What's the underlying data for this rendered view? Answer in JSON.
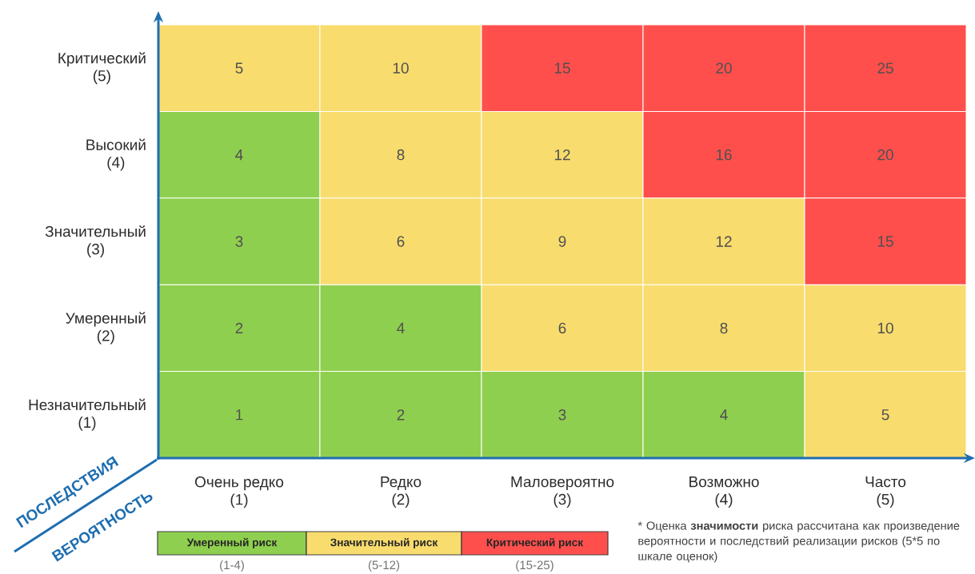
{
  "chart_data": [
    {
      "type": "heatmap",
      "xlabel": "ВЕРОЯТНОСТЬ",
      "ylabel": "ПОСЛЕДСТВИЯ",
      "categories": [
        "Очень редко\n(1)",
        "Редко\n(2)",
        "Маловероятно\n(3)",
        "Возможно\n(4)",
        "Часто\n(5)"
      ],
      "y_categories": [
        "Критический\n(5)",
        "Высокий\n(4)",
        "Значительный\n(3)",
        "Умеренный\n(2)",
        "Незначительный\n(1)"
      ],
      "cells": [
        [
          5,
          10,
          15,
          20,
          25
        ],
        [
          4,
          8,
          12,
          16,
          20
        ],
        [
          3,
          6,
          9,
          12,
          15
        ],
        [
          2,
          4,
          6,
          8,
          10
        ],
        [
          1,
          2,
          3,
          4,
          5
        ]
      ],
      "colors": [
        [
          "#f8dc6e",
          "#f8dc6e",
          "#fe4f4d",
          "#fe4f4d",
          "#fe4f4d"
        ],
        [
          "#8fcf4f",
          "#f8dc6e",
          "#f8dc6e",
          "#fe4f4d",
          "#fe4f4d"
        ],
        [
          "#8fcf4f",
          "#f8dc6e",
          "#f8dc6e",
          "#f8dc6e",
          "#fe4f4d"
        ],
        [
          "#8fcf4f",
          "#8fcf4f",
          "#f8dc6e",
          "#f8dc6e",
          "#f8dc6e"
        ],
        [
          "#8fcf4f",
          "#8fcf4f",
          "#8fcf4f",
          "#8fcf4f",
          "#f8dc6e"
        ]
      ],
      "data_labels": true,
      "annotations": [
        "* Оценка **значимости** риска рассчитана как произведение вероятности и последствий реализации рисков  (5*5 по шкале оценок)"
      ]
    },
    {
      "type": "other",
      "categories": [
        "Умеренный риск",
        "Значительный риск",
        "Критический риск"
      ],
      "colors": [
        "#8fcf4f",
        "#f8dc6e",
        "#fe4f4d"
      ],
      "annotations": [
        "(1-4)",
        "(5-12)",
        "(15-25)"
      ]
    }
  ]
}
